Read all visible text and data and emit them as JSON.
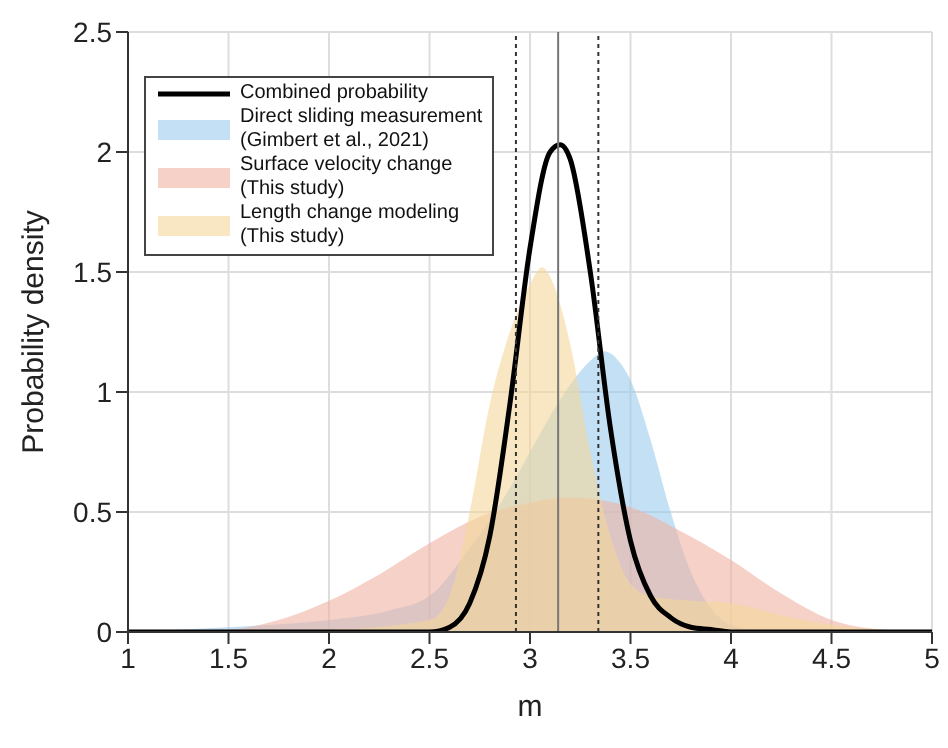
{
  "chart_data": {
    "type": "area",
    "xlabel": "m",
    "ylabel": "Probability density",
    "xlim": [
      1,
      5
    ],
    "ylim": [
      0,
      2.5
    ],
    "xticks": [
      1,
      1.5,
      2,
      2.5,
      3,
      3.5,
      4,
      4.5,
      5
    ],
    "yticks": [
      0,
      0.5,
      1,
      1.5,
      2,
      2.5
    ],
    "grid": true,
    "legend": "top left",
    "series": [
      {
        "name": "Direct sliding measurement\n(Gimbert et al., 2021)",
        "color": "#9ccbee",
        "x": [
          1,
          1.5,
          2,
          2.3,
          2.5,
          2.7,
          2.9,
          3.0,
          3.1,
          3.2,
          3.3,
          3.37,
          3.45,
          3.5,
          3.6,
          3.7,
          3.8,
          3.9,
          4.0,
          4.2,
          5
        ],
        "values": [
          0,
          0.02,
          0.05,
          0.09,
          0.15,
          0.35,
          0.6,
          0.75,
          0.9,
          1.03,
          1.13,
          1.17,
          1.12,
          1.05,
          0.8,
          0.5,
          0.25,
          0.1,
          0.03,
          0,
          0
        ]
      },
      {
        "name": "Surface velocity change\n(This study)",
        "color": "#eeb3a3",
        "x": [
          1,
          1.5,
          1.75,
          2,
          2.25,
          2.5,
          2.75,
          3,
          3.2,
          3.5,
          3.75,
          4,
          4.25,
          4.5,
          4.75,
          5
        ],
        "values": [
          0,
          0.01,
          0.05,
          0.13,
          0.24,
          0.37,
          0.48,
          0.54,
          0.56,
          0.52,
          0.42,
          0.3,
          0.16,
          0.05,
          0.01,
          0
        ]
      },
      {
        "name": "Length change modeling\n(This study)",
        "color": "#f4d79a",
        "x": [
          1,
          2,
          2.5,
          2.6,
          2.7,
          2.8,
          2.9,
          3.0,
          3.06,
          3.1,
          3.2,
          3.3,
          3.4,
          3.5,
          3.6,
          3.8,
          4.0,
          4.25,
          4.5,
          4.75,
          5
        ],
        "values": [
          0,
          0.01,
          0.05,
          0.15,
          0.5,
          0.95,
          1.25,
          1.45,
          1.52,
          1.48,
          1.2,
          0.75,
          0.4,
          0.2,
          0.15,
          0.13,
          0.12,
          0.07,
          0.03,
          0.01,
          0
        ]
      },
      {
        "name": "Combined probability",
        "type": "line",
        "color": "#000000",
        "x": [
          1,
          2.5,
          2.6,
          2.7,
          2.8,
          2.9,
          3.0,
          3.1,
          3.15,
          3.2,
          3.3,
          3.4,
          3.5,
          3.6,
          3.7,
          3.8,
          3.9,
          4.0,
          5
        ],
        "values": [
          0,
          0,
          0.02,
          0.12,
          0.4,
          0.95,
          1.6,
          2.0,
          2.03,
          1.97,
          1.5,
          0.85,
          0.38,
          0.15,
          0.06,
          0.02,
          0.01,
          0,
          0
        ]
      }
    ],
    "ref_lines": [
      {
        "axis": "x",
        "value": 3.14,
        "color": "#777777",
        "line_style": "solid"
      },
      {
        "axis": "x",
        "value": 2.93,
        "color": "#333333",
        "line_style": "dotted"
      },
      {
        "axis": "x",
        "value": 3.34,
        "color": "#333333",
        "line_style": "dotted"
      }
    ]
  }
}
